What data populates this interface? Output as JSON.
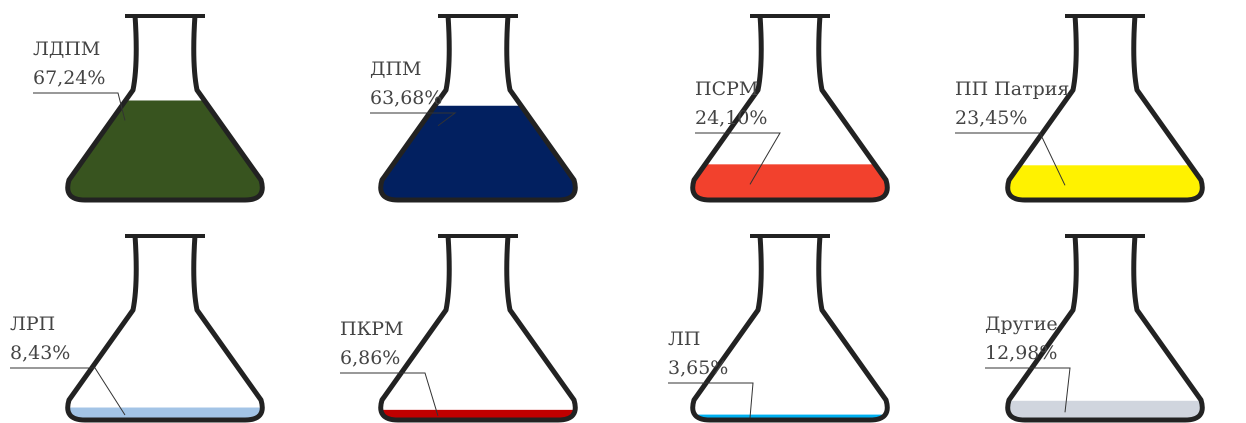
{
  "chart_data": {
    "type": "flask",
    "categories": [
      "ЛДПМ",
      "ДПМ",
      "ПСРМ",
      "ПП Патрия",
      "ЛРП",
      "ПКРМ",
      "ЛП",
      "Другие"
    ],
    "values": [
      67.24,
      63.68,
      24.1,
      23.45,
      8.43,
      6.86,
      3.65,
      12.98
    ],
    "value_labels": [
      "67,24%",
      "63,68%",
      "24,10%",
      "23,45%",
      "8,43%",
      "6,86%",
      "3,65%",
      "12,98%"
    ],
    "colors": [
      "#38541f",
      "#022060",
      "#f2412d",
      "#fff200",
      "#a3c4e6",
      "#c00000",
      "#00b0f0",
      "#d0d5de"
    ]
  }
}
